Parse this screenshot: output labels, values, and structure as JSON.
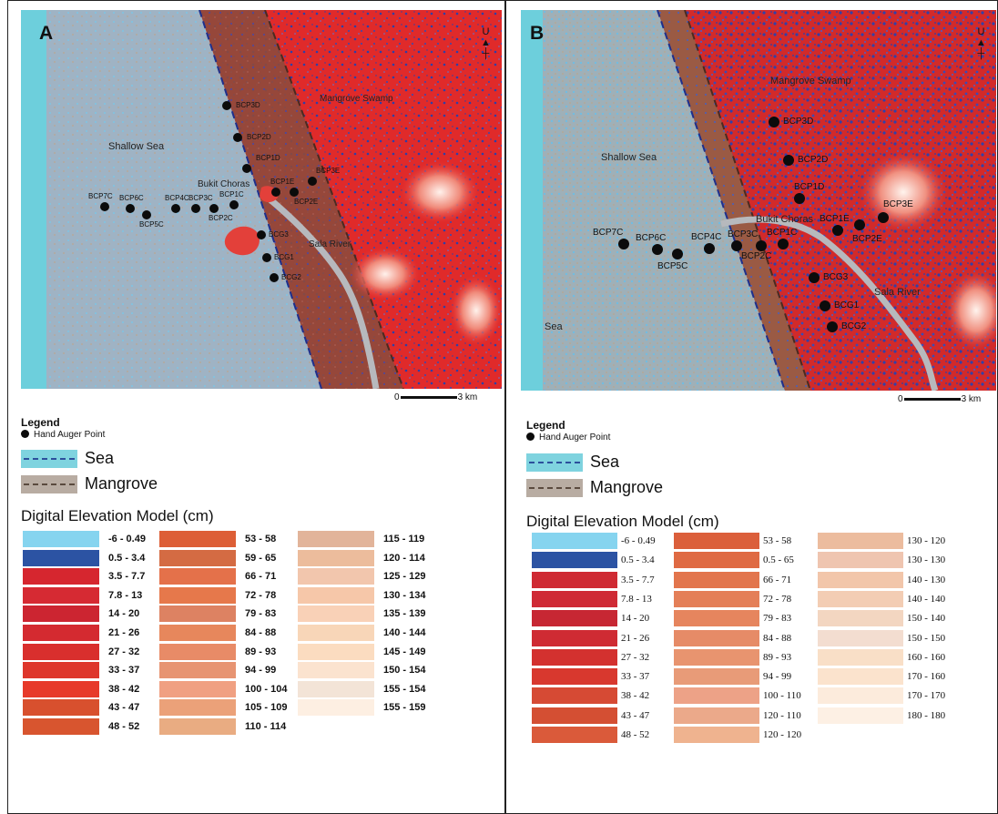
{
  "panels": [
    {
      "letter": "A",
      "map_labels": {
        "shallow_sea": "Shallow Sea",
        "mangrove_swamp": "Mangrove Swamp",
        "bukit_choras": "Bukit Choras",
        "sala_river": "Sala River"
      },
      "north_label": "U",
      "scale": {
        "start": "0",
        "end": "3 km"
      },
      "points": [
        "BCP7C",
        "BCP6C",
        "BCP5C",
        "BCP4C",
        "BCP3C",
        "BCP2C",
        "BCP1C",
        "BCP3D",
        "BCP2D",
        "BCP1D",
        "BCP1E",
        "BCP2E",
        "BCP3E",
        "BCG3",
        "BCG1",
        "BCG2"
      ],
      "legend": {
        "title": "Legend",
        "auger": "Hand Auger Point",
        "sea": "Sea",
        "mangrove": "Mangrove",
        "sea_color": "#7fd3df",
        "sea_dash": "#2c4f9c",
        "mangrove_color": "#b8aca2",
        "mangrove_dash": "#5a4a3e"
      },
      "dem_title": "Digital Elevation Model (cm)",
      "dem_columns": [
        [
          {
            "label": "-6 - 0.49",
            "color": "#86d4ef"
          },
          {
            "label": "0.5 - 3.4",
            "color": "#2c53a3"
          },
          {
            "label": "3.5 - 7.7",
            "color": "#d6262f"
          },
          {
            "label": "7.8 - 13",
            "color": "#d62a33"
          },
          {
            "label": "14 - 20",
            "color": "#cc2531"
          },
          {
            "label": "21 - 26",
            "color": "#d42a30"
          },
          {
            "label": "27 - 32",
            "color": "#d92f2d"
          },
          {
            "label": "33 - 37",
            "color": "#de362b"
          },
          {
            "label": "38 - 42",
            "color": "#e73a2a"
          },
          {
            "label": "43 - 47",
            "color": "#d8502e"
          },
          {
            "label": "48 - 52",
            "color": "#d8552f"
          }
        ],
        [
          {
            "label": "53 - 58",
            "color": "#dd5e36"
          },
          {
            "label": "59 - 65",
            "color": "#d46b43"
          },
          {
            "label": "66 - 71",
            "color": "#e4714a"
          },
          {
            "label": "72 - 78",
            "color": "#e6784b"
          },
          {
            "label": "79 - 83",
            "color": "#dd8262"
          },
          {
            "label": "84 - 88",
            "color": "#e7875c"
          },
          {
            "label": "89 - 93",
            "color": "#e88b67"
          },
          {
            "label": "94 - 99",
            "color": "#e79472"
          },
          {
            "label": "100 - 104",
            "color": "#f0a082"
          },
          {
            "label": "105 - 109",
            "color": "#eba179"
          },
          {
            "label": "110 - 114",
            "color": "#e9ac82"
          }
        ],
        [
          {
            "label": "115 - 119",
            "color": "#e2b49a"
          },
          {
            "label": "120 - 114",
            "color": "#ecbc9c"
          },
          {
            "label": "125 - 129",
            "color": "#f2c6ad"
          },
          {
            "label": "130 - 134",
            "color": "#f6c7a9"
          },
          {
            "label": "135 - 139",
            "color": "#f9d1b7"
          },
          {
            "label": "140 - 144",
            "color": "#f8d6b8"
          },
          {
            "label": "145 - 149",
            "color": "#fbdcc0"
          },
          {
            "label": "150 - 154",
            "color": "#fbe3cf"
          },
          {
            "label": "155 - 154",
            "color": "#f3e4d7"
          },
          {
            "label": "155 - 159",
            "color": "#fdefe2"
          }
        ]
      ]
    },
    {
      "letter": "B",
      "map_labels": {
        "shallow_sea": "Shallow Sea",
        "mangrove_swamp": "Mangrove Swamp",
        "bukit_choras": "Bukit Choras",
        "sala_river": "Sala River",
        "sea": "Sea"
      },
      "north_label": "U",
      "scale": {
        "start": "0",
        "end": "3 km"
      },
      "points": [
        "BCP7C",
        "BCP6C",
        "BCP5C",
        "BCP4C",
        "BCP3C",
        "BCP2C",
        "BCP1C",
        "BCP3D",
        "BCP2D",
        "BCP1D",
        "BCP1E",
        "BCP2E",
        "BCP3E",
        "BCG3",
        "BCG1",
        "BCG2"
      ],
      "legend": {
        "title": "Legend",
        "auger": "Hand Auger Point",
        "sea": "Sea",
        "mangrove": "Mangrove",
        "sea_color": "#7fd3df",
        "sea_dash": "#2c4f9c",
        "mangrove_color": "#b8aca2",
        "mangrove_dash": "#5a4a3e"
      },
      "dem_title": "Digital Elevation Model (cm)",
      "dem_columns": [
        [
          {
            "label": "-6 - 0.49",
            "color": "#86d4ef"
          },
          {
            "label": "0.5 - 3.4",
            "color": "#2c53a3"
          },
          {
            "label": "3.5 - 7.7",
            "color": "#cf2a33"
          },
          {
            "label": "7.8 - 13",
            "color": "#cf2a35"
          },
          {
            "label": "14 - 20",
            "color": "#c72733"
          },
          {
            "label": "21 - 26",
            "color": "#cf2b33"
          },
          {
            "label": "27 - 32",
            "color": "#d3312f"
          },
          {
            "label": "33 - 37",
            "color": "#d8382e"
          },
          {
            "label": "38 - 42",
            "color": "#d64a34"
          },
          {
            "label": "43 - 47",
            "color": "#d44f33"
          },
          {
            "label": "48 - 52",
            "color": "#da5a3a"
          }
        ],
        [
          {
            "label": "53 - 58",
            "color": "#db5f3b"
          },
          {
            "label": "0.5 - 65",
            "color": "#df6a43"
          },
          {
            "label": "66 - 71",
            "color": "#e2754d"
          },
          {
            "label": "72 - 78",
            "color": "#e47f58"
          },
          {
            "label": "79 - 83",
            "color": "#e6855e"
          },
          {
            "label": "84 - 88",
            "color": "#e68b67"
          },
          {
            "label": "89 - 93",
            "color": "#e8946f"
          },
          {
            "label": "94 - 99",
            "color": "#e89b78"
          },
          {
            "label": "100 - 110",
            "color": "#eda287"
          },
          {
            "label": "120 - 110",
            "color": "#eba98a"
          },
          {
            "label": "120 - 120",
            "color": "#efb38f"
          }
        ],
        [
          {
            "label": "130 - 120",
            "color": "#ecbc9e"
          },
          {
            "label": "130 - 130",
            "color": "#efc5b0"
          },
          {
            "label": "140 - 130",
            "color": "#f2c6aa"
          },
          {
            "label": "140 - 140",
            "color": "#f3cdb4"
          },
          {
            "label": "150 - 140",
            "color": "#f3d6c1"
          },
          {
            "label": "150 - 150",
            "color": "#f3ddd0"
          },
          {
            "label": "160 - 160",
            "color": "#f9dfc7"
          },
          {
            "label": "170 - 160",
            "color": "#fbe3cd"
          },
          {
            "label": "170 - 170",
            "color": "#fcebdc"
          },
          {
            "label": "180 - 180",
            "color": "#fdf0e4"
          }
        ]
      ]
    }
  ]
}
